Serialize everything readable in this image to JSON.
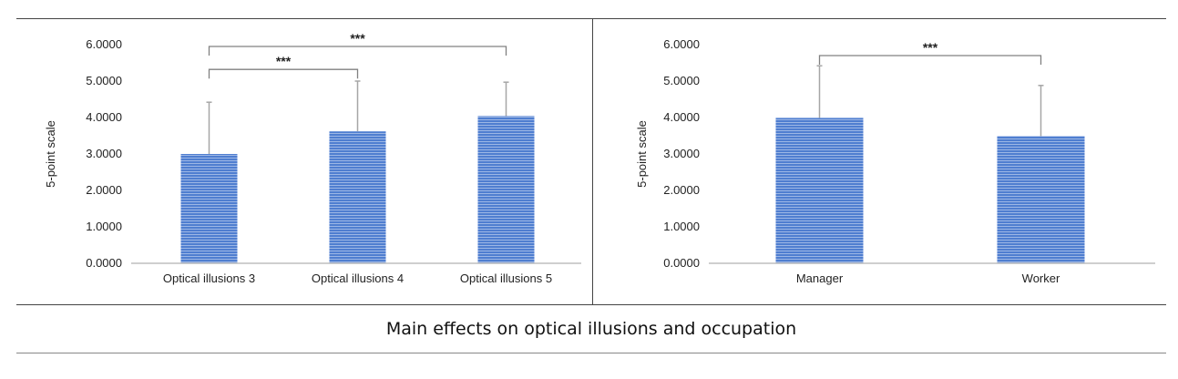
{
  "caption": "Main effects on optical illusions and occupation",
  "colors": {
    "bar": "#4f7ed0",
    "bar_stripe": "#ffffff",
    "error": "#a6a6a6",
    "bracket": "#808080",
    "axis": "#bfbfbf"
  },
  "chart_data": [
    {
      "type": "bar",
      "title": "",
      "xlabel": "",
      "ylabel": "5-point scale",
      "ylim": [
        0,
        6
      ],
      "yticks": [
        "0.0000",
        "1.0000",
        "2.0000",
        "3.0000",
        "4.0000",
        "5.0000",
        "6.0000"
      ],
      "categories": [
        "Optical illusions 3",
        "Optical illusions 4",
        "Optical illusions 5"
      ],
      "values": [
        3.0,
        3.62,
        4.04
      ],
      "error_upper": [
        4.42,
        5.0,
        4.97
      ],
      "significance": [
        {
          "from": 0,
          "to": 2,
          "label": "***",
          "y": 5.95
        },
        {
          "from": 0,
          "to": 1,
          "label": "***",
          "y": 5.32
        }
      ],
      "grid": false
    },
    {
      "type": "bar",
      "title": "",
      "xlabel": "",
      "ylabel": "5-point scale",
      "ylim": [
        0,
        6
      ],
      "yticks": [
        "0.0000",
        "1.0000",
        "2.0000",
        "3.0000",
        "4.0000",
        "5.0000",
        "6.0000"
      ],
      "categories": [
        "Manager",
        "Worker"
      ],
      "values": [
        3.99,
        3.49
      ],
      "error_upper": [
        5.42,
        4.88
      ],
      "significance": [
        {
          "from": 0,
          "to": 1,
          "label": "***",
          "y": 5.7
        }
      ],
      "grid": false
    }
  ]
}
